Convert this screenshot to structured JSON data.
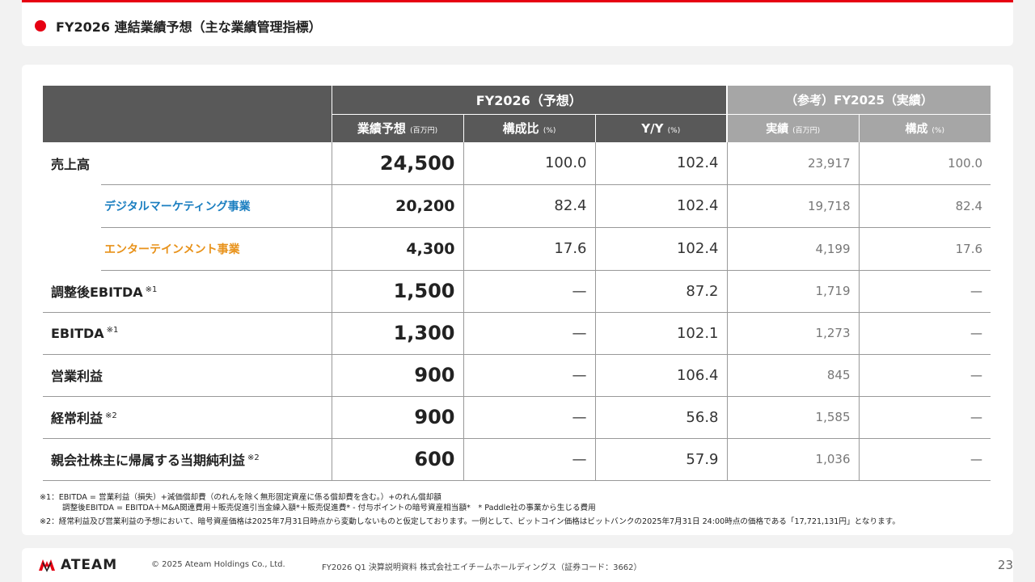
{
  "header": {
    "title": "FY2026 連結業績予想（主な業績管理指標）",
    "accent_color": "#e60012"
  },
  "table": {
    "group_headers": {
      "forecast": "FY2026（予想）",
      "reference": "（参考）FY2025（実績）"
    },
    "sub_headers": [
      {
        "label": "業績予想",
        "unit": "(百万円)"
      },
      {
        "label": "構成比",
        "unit": "(%)"
      },
      {
        "label": "Y/Y",
        "unit": "(%)"
      },
      {
        "label": "実績",
        "unit": "(百万円)"
      },
      {
        "label": "構成",
        "unit": "(%)"
      }
    ],
    "rows": [
      {
        "label": "売上高",
        "note": "",
        "forecast": "24,500",
        "ratio": "100.0",
        "yoy": "102.4",
        "actual": "23,917",
        "comp": "100.0"
      },
      {
        "label": "デジタルマーケティング事業",
        "note": "",
        "forecast": "20,200",
        "ratio": "82.4",
        "yoy": "102.4",
        "actual": "19,718",
        "comp": "82.4"
      },
      {
        "label": "エンターテインメント事業",
        "note": "",
        "forecast": "4,300",
        "ratio": "17.6",
        "yoy": "102.4",
        "actual": "4,199",
        "comp": "17.6"
      },
      {
        "label": "調整後EBITDA",
        "note": "※1",
        "forecast": "1,500",
        "ratio": "—",
        "yoy": "87.2",
        "actual": "1,719",
        "comp": "—"
      },
      {
        "label": "EBITDA",
        "note": "※1",
        "forecast": "1,300",
        "ratio": "—",
        "yoy": "102.1",
        "actual": "1,273",
        "comp": "—"
      },
      {
        "label": "営業利益",
        "note": "",
        "forecast": "900",
        "ratio": "—",
        "yoy": "106.4",
        "actual": "845",
        "comp": "—"
      },
      {
        "label": "経常利益",
        "note": "※2",
        "forecast": "900",
        "ratio": "—",
        "yoy": "56.8",
        "actual": "1,585",
        "comp": "—"
      },
      {
        "label": "親会社株主に帰属する当期純利益",
        "note": "※2",
        "forecast": "600",
        "ratio": "—",
        "yoy": "57.9",
        "actual": "1,036",
        "comp": "—"
      }
    ],
    "segment_colors": {
      "digital": "#1a7ec0",
      "entertainment": "#e8921a"
    }
  },
  "notes": {
    "n1_line1": "※1：EBITDA = 営業利益（損失）+減価償却費（のれんを除く無形固定資産に係る償却費を含む。）+のれん償却額",
    "n1_line2": "調整後EBITDA = EBITDA＋M&A関連費用＋販売促進引当金繰入額*＋販売促進費* - 付与ポイントの暗号資産相当額*　* Paddle社の事業から生じる費用",
    "n2": "※2：経常利益及び営業利益の予想において、暗号資産価格は2025年7月31日時点から変動しないものと仮定しております。一例として、ビットコイン価格はビットバンクの2025年7月31日 24:00時点の価格である「17,721,131円」となります。"
  },
  "footer": {
    "logo_text": "ATEAM",
    "copyright": "© 2025 Ateam Holdings Co., Ltd.",
    "document": "FY2026 Q1 決算説明資料 株式会社エイチームホールディングス（証券コード：3662）",
    "page_number": "23"
  }
}
